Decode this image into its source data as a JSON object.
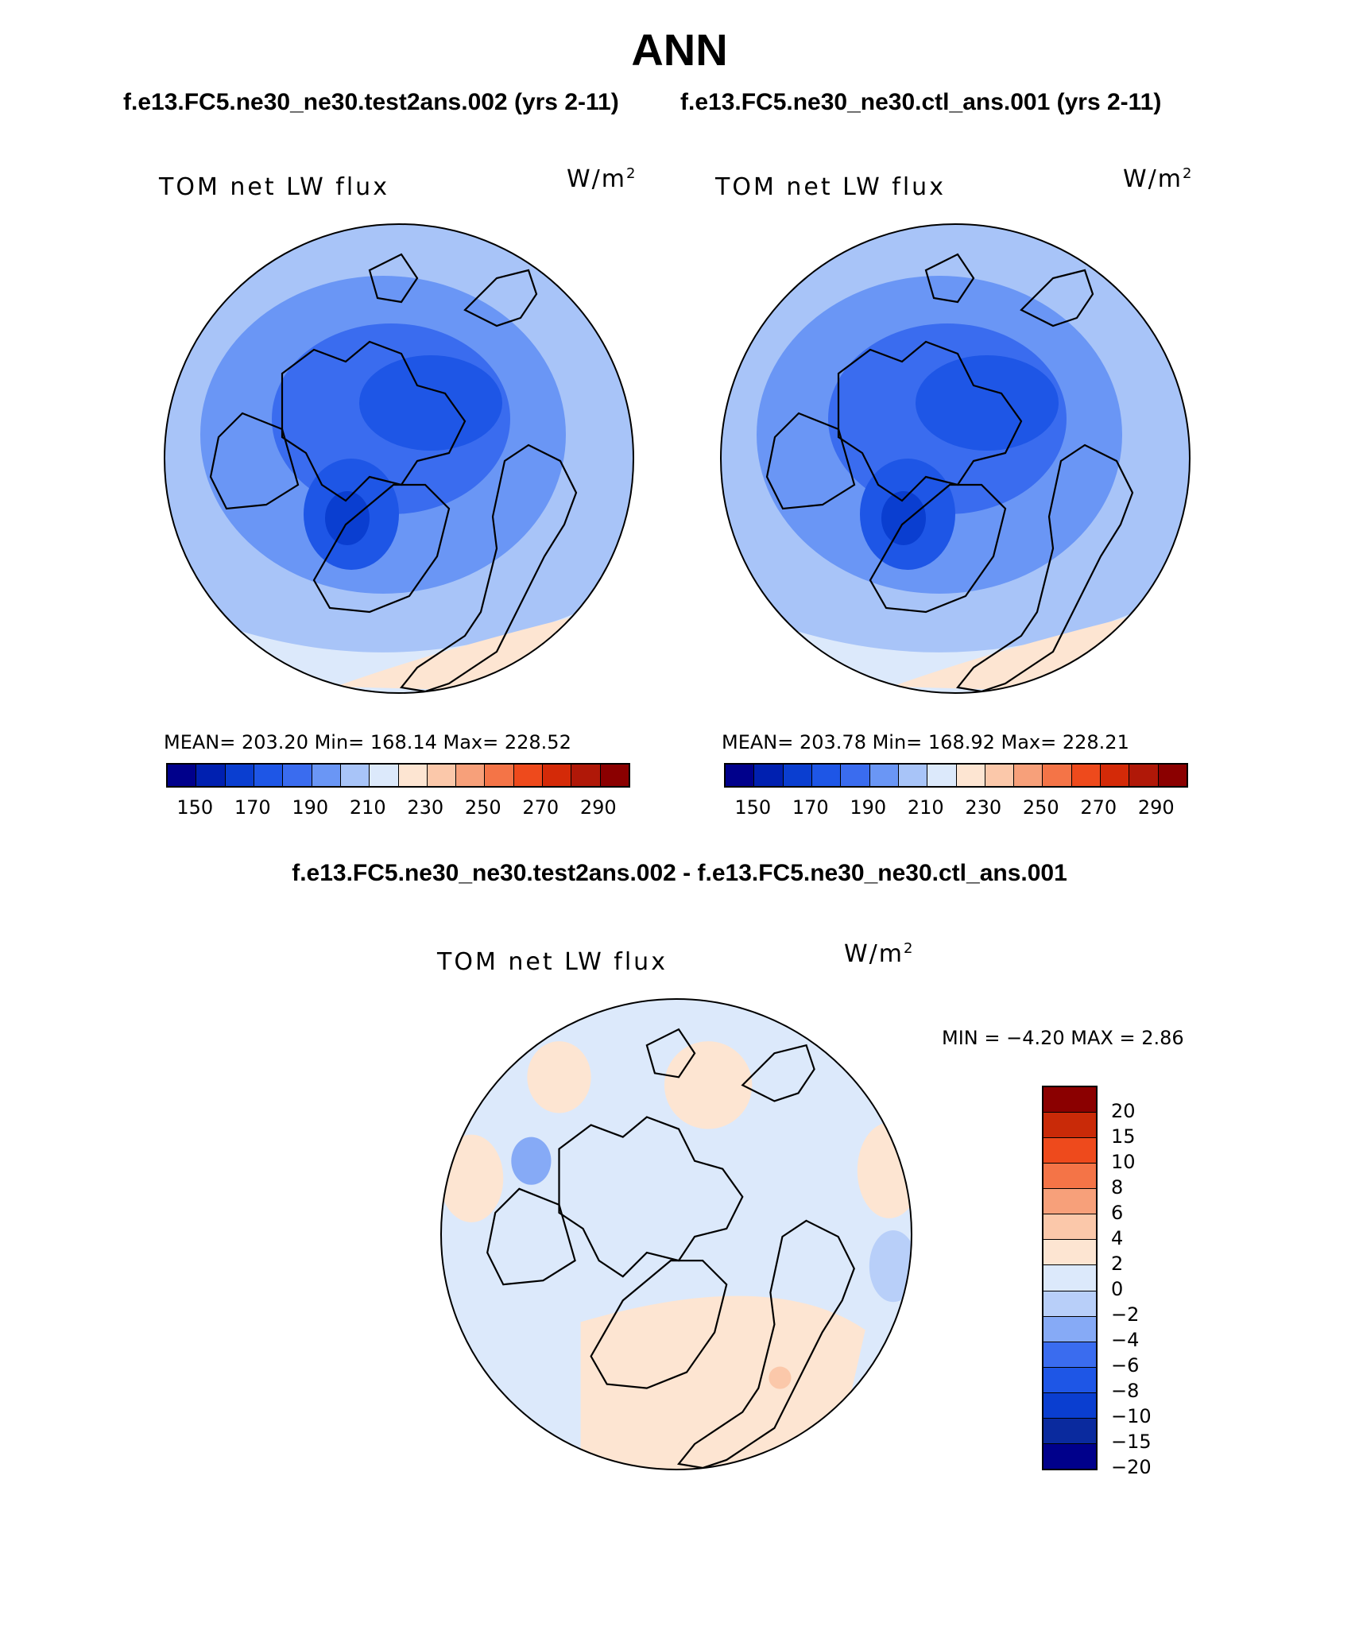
{
  "title": "ANN",
  "case_titles": [
    "f.e13.FC5.ne30_ne30.test2ans.002 (yrs 2-11)",
    "f.e13.FC5.ne30_ne30.ctl_ans.001 (yrs 2-11)"
  ],
  "diff_title": "f.e13.FC5.ne30_ne30.test2ans.002 - f.e13.FC5.ne30_ne30.ctl_ans.001",
  "units_base": "W/m",
  "units_exp": "2",
  "panels": [
    {
      "label": "TOM net LW flux",
      "stats": "MEAN= 203.20   Min= 168.14   Max= 228.52",
      "cbar_labels": [
        "150",
        "170",
        "190",
        "210",
        "230",
        "250",
        "270",
        "290"
      ]
    },
    {
      "label": "TOM net LW flux",
      "stats": "MEAN= 203.78   Min= 168.92   Max= 228.21",
      "cbar_labels": [
        "150",
        "170",
        "190",
        "210",
        "230",
        "250",
        "270",
        "290"
      ]
    }
  ],
  "diff_panel": {
    "label": "TOM net LW flux",
    "stats": "MIN =   −4.20 MAX =     2.86",
    "cbar_labels": [
      "20",
      "15",
      "10",
      "8",
      "6",
      "4",
      "2",
      "0",
      "−2",
      "−4",
      "−6",
      "−8",
      "−10",
      "−15",
      "−20"
    ]
  },
  "colors": {
    "abs_scale": [
      "#00008b",
      "#0020b0",
      "#0a3ed0",
      "#1e56e6",
      "#3a6cef",
      "#6a96f5",
      "#a8c4f8",
      "#dce9fb",
      "#fde5d2",
      "#fbc8aa",
      "#f7a07a",
      "#f47447",
      "#ee4a1c",
      "#d42a08",
      "#b01808",
      "#8b0000"
    ],
    "diff_scale": [
      "#00008b",
      "#0a2a9e",
      "#0a3ed0",
      "#1e56e6",
      "#3a6cef",
      "#86aaf6",
      "#b8cff9",
      "#dce9fb",
      "#fde5d2",
      "#fbc8aa",
      "#f7a07a",
      "#f47447",
      "#ee4a1c",
      "#c92a08",
      "#8b0000"
    ]
  }
}
